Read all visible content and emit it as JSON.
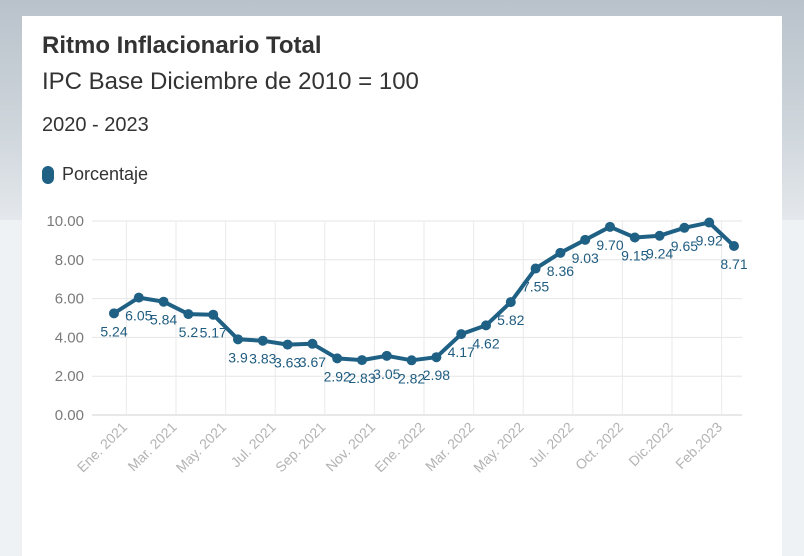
{
  "chart_data": {
    "type": "line",
    "title": "Ritmo Inflacionario Total",
    "subtitle": "IPC Base Diciembre de 2010 = 100",
    "period": "2020 - 2023",
    "xlabel": "",
    "ylabel": "",
    "ylim": [
      0,
      10
    ],
    "yticks": [
      "0.00",
      "2.00",
      "4.00",
      "6.00",
      "8.00",
      "10.00"
    ],
    "grid": true,
    "legend_position": "top-left",
    "x_tick_labels": [
      "Ene. 2021",
      "Mar. 2021",
      "May. 2021",
      "Jul. 2021",
      "Sep. 2021",
      "Nov. 2021",
      "Ene. 2022",
      "Mar. 2022",
      "May. 2022",
      "Jul. 2022",
      "Oct. 2022",
      "Dic.2022",
      "Feb.2023"
    ],
    "series": [
      {
        "name": "Porcentaje",
        "color": "#1f6085",
        "values": [
          5.24,
          6.05,
          5.84,
          5.2,
          5.17,
          3.9,
          3.83,
          3.63,
          3.67,
          2.92,
          2.83,
          3.05,
          2.82,
          2.98,
          4.17,
          4.62,
          5.82,
          7.55,
          8.36,
          9.03,
          9.7,
          9.15,
          9.24,
          9.65,
          9.92,
          8.71
        ],
        "labels": [
          "5.24",
          "6.05",
          "5.84",
          "5.2",
          "5.17",
          "3.9",
          "3.83",
          "3.63",
          "3.67",
          "2.92",
          "2.83",
          "3.05",
          "2.82",
          "2.98",
          "4.17",
          "4.62",
          "5.82",
          "7.55",
          "8.36",
          "9.03",
          "9.70",
          "9.15",
          "9.24",
          "9.65",
          "9.92",
          "8.71"
        ]
      }
    ]
  }
}
